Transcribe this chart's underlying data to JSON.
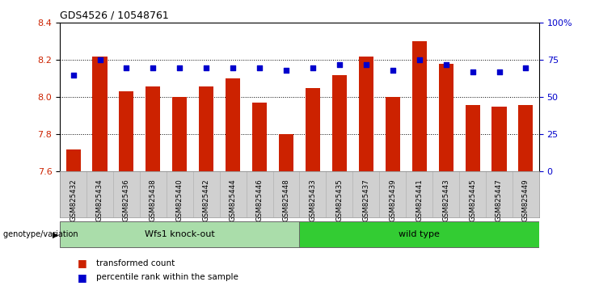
{
  "title": "GDS4526 / 10548761",
  "samples": [
    "GSM825432",
    "GSM825434",
    "GSM825436",
    "GSM825438",
    "GSM825440",
    "GSM825442",
    "GSM825444",
    "GSM825446",
    "GSM825448",
    "GSM825433",
    "GSM825435",
    "GSM825437",
    "GSM825439",
    "GSM825441",
    "GSM825443",
    "GSM825445",
    "GSM825447",
    "GSM825449"
  ],
  "bar_values": [
    7.72,
    8.22,
    8.03,
    8.06,
    8.0,
    8.06,
    8.1,
    7.97,
    7.8,
    8.05,
    8.12,
    8.22,
    8.0,
    8.3,
    8.18,
    7.96,
    7.95,
    7.96
  ],
  "percentile_values": [
    65,
    75,
    70,
    70,
    70,
    70,
    70,
    70,
    68,
    70,
    72,
    72,
    68,
    75,
    72,
    67,
    67,
    70
  ],
  "ymin": 7.6,
  "ymax": 8.4,
  "bar_color": "#cc2200",
  "dot_color": "#0000cc",
  "group1_label": "Wfs1 knock-out",
  "group2_label": "wild type",
  "group1_color": "#aaddaa",
  "group2_color": "#33cc33",
  "group1_count": 9,
  "group2_count": 9,
  "xlabel_left": "genotype/variation",
  "legend_red": "transformed count",
  "legend_blue": "percentile rank within the sample",
  "right_axis_ticks": [
    0,
    25,
    50,
    75,
    100
  ],
  "right_axis_labels": [
    "0",
    "25",
    "50",
    "75",
    "100%"
  ],
  "left_yticks": [
    7.6,
    7.8,
    8.0,
    8.2,
    8.4
  ],
  "bar_width": 0.55
}
